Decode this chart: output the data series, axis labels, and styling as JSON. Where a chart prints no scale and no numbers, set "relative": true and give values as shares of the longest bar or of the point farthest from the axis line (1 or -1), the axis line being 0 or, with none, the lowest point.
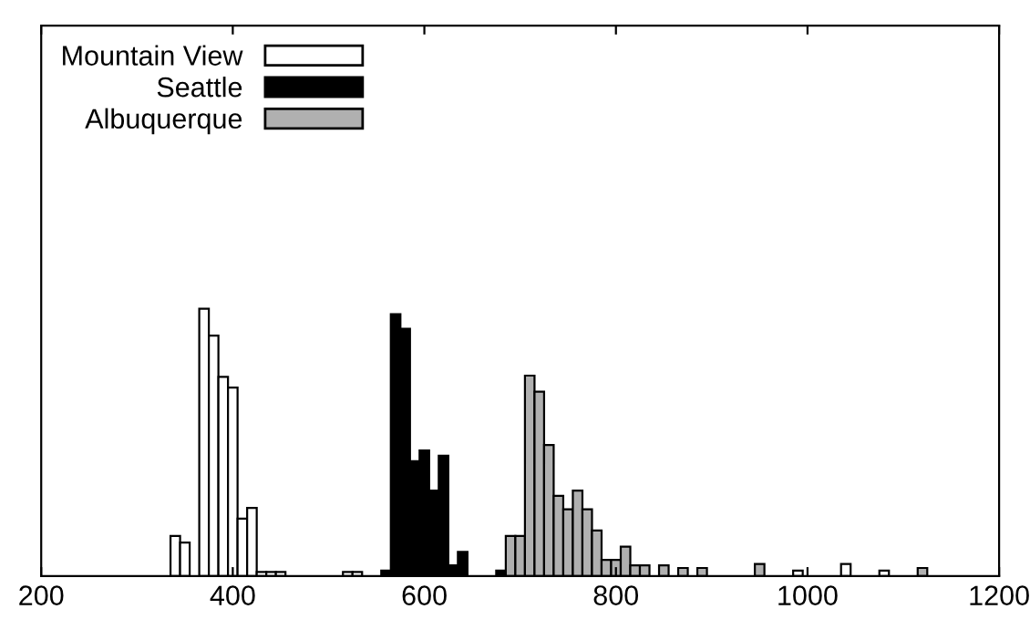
{
  "chart_data": {
    "type": "bar",
    "relative": true,
    "xlim": [
      200,
      1200
    ],
    "xticks": [
      200,
      400,
      600,
      800,
      1000,
      1200
    ],
    "legend": "top left",
    "grid": false,
    "x": [
      340,
      350,
      360,
      370,
      380,
      390,
      400,
      410,
      420,
      430,
      440,
      450,
      460,
      470,
      480,
      490,
      500,
      510,
      520,
      530,
      540,
      550,
      560,
      570,
      580,
      590,
      600,
      610,
      620,
      630,
      640,
      650,
      660,
      670,
      680,
      690,
      700,
      710,
      720,
      730,
      740,
      750,
      760,
      770,
      780,
      790,
      800,
      810,
      820,
      830,
      840,
      850,
      860,
      870,
      880,
      890,
      900,
      910,
      920,
      930,
      940,
      950,
      960,
      970,
      980,
      990,
      1000,
      1010,
      1020,
      1030,
      1040,
      1050,
      1060,
      1070,
      1080,
      1090,
      1100,
      1110,
      1120
    ],
    "series": [
      {
        "name": "Mountain View",
        "color": "#ffffff",
        "values": [
          0.15,
          0.125,
          null,
          1.0,
          0.9,
          0.745,
          0.705,
          0.215,
          0.255,
          0.015,
          0.015,
          0.015,
          null,
          null,
          null,
          null,
          null,
          null,
          0.015,
          0.015,
          null,
          null,
          null,
          null,
          null,
          null,
          null,
          null,
          null,
          null,
          null,
          null,
          null,
          null,
          null,
          null,
          null,
          null,
          null,
          null,
          null,
          null,
          null,
          null,
          null,
          null,
          null,
          null,
          null,
          null,
          null,
          null,
          null,
          null,
          null,
          null,
          null,
          null,
          null,
          null,
          null,
          null,
          null,
          null,
          null,
          0.02,
          null,
          null,
          null,
          null,
          0.045,
          null,
          null,
          null,
          0.02,
          null,
          null,
          null,
          null
        ]
      },
      {
        "name": "Seattle",
        "color": "#000000",
        "values": [
          null,
          null,
          null,
          null,
          null,
          null,
          null,
          null,
          null,
          null,
          null,
          null,
          null,
          null,
          null,
          null,
          null,
          null,
          null,
          null,
          null,
          null,
          0.02,
          0.98,
          0.925,
          0.43,
          0.47,
          0.32,
          0.45,
          0.04,
          0.09,
          null,
          null,
          null,
          0.02,
          null,
          null,
          null,
          null,
          null,
          null,
          null,
          null,
          null,
          null,
          null,
          null,
          null,
          null,
          null,
          null,
          null,
          null,
          null,
          null,
          null,
          null,
          null,
          null,
          null,
          null,
          null,
          null,
          null,
          null,
          null,
          null,
          null,
          null,
          null,
          null,
          null,
          null,
          null,
          null,
          null,
          null,
          null,
          null
        ]
      },
      {
        "name": "Albuquerque",
        "color": "#b0b0b0",
        "values": [
          null,
          null,
          null,
          null,
          null,
          null,
          null,
          null,
          null,
          null,
          null,
          null,
          null,
          null,
          null,
          null,
          null,
          null,
          null,
          null,
          null,
          null,
          null,
          null,
          null,
          null,
          null,
          null,
          null,
          null,
          null,
          null,
          null,
          null,
          null,
          0.15,
          0.15,
          0.75,
          0.69,
          0.49,
          0.3,
          0.25,
          0.32,
          0.25,
          0.17,
          0.06,
          0.06,
          0.11,
          0.04,
          0.04,
          null,
          0.04,
          null,
          0.03,
          null,
          0.03,
          null,
          null,
          null,
          null,
          null,
          0.045,
          null,
          null,
          null,
          null,
          null,
          null,
          null,
          null,
          null,
          null,
          null,
          null,
          null,
          null,
          null,
          null,
          0.03
        ]
      }
    ]
  }
}
